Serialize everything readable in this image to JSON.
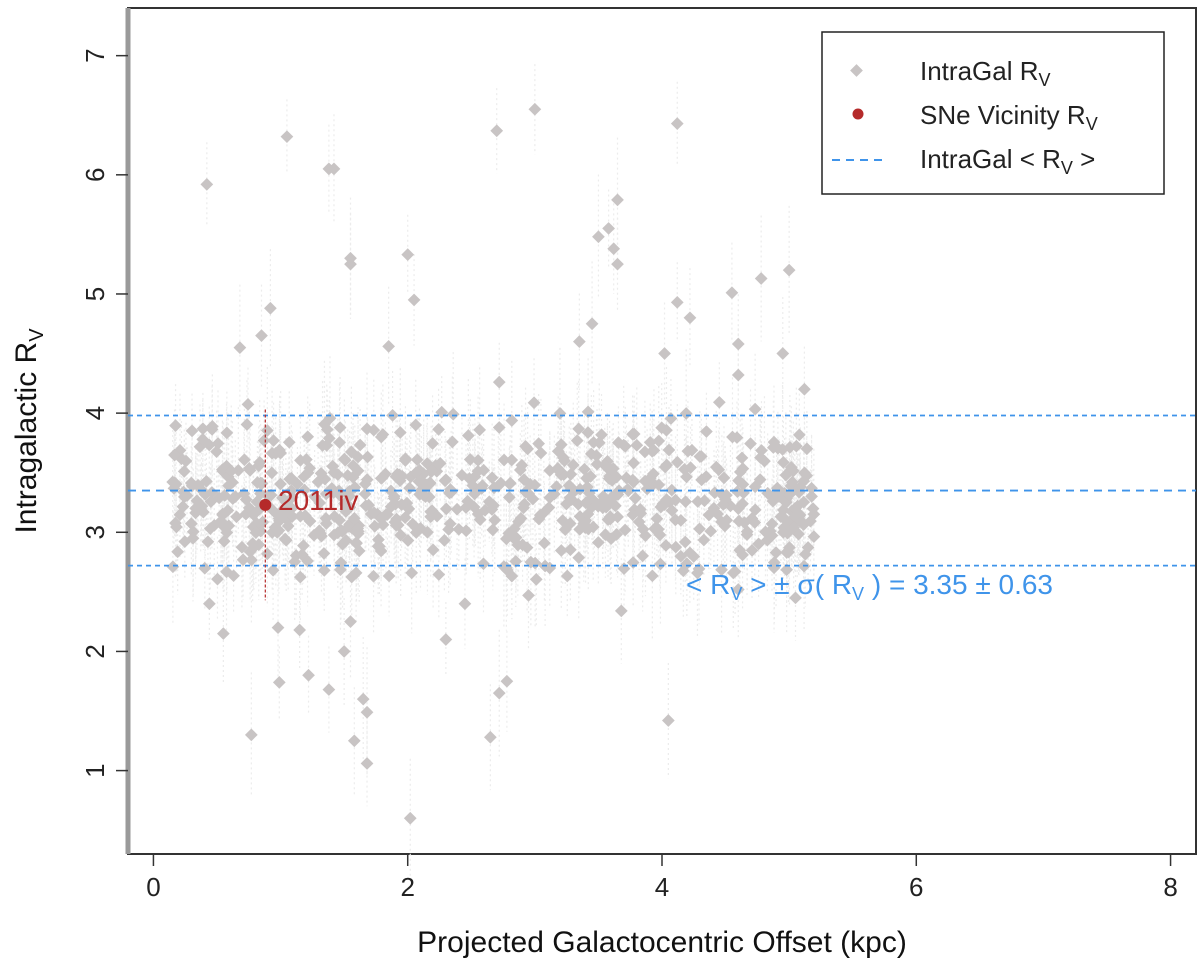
{
  "chart_data": {
    "type": "scatter",
    "xlabel": "Projected Galactocentric Offset (kpc)",
    "ylabel": "Intragalactic R",
    "ylabel_sub": "V",
    "xlim": [
      -0.2,
      8.2
    ],
    "ylim": [
      0.3,
      7.4
    ],
    "xticks": [
      "0",
      "2",
      "4",
      "6",
      "8"
    ],
    "yticks": [
      "1",
      "2",
      "3",
      "4",
      "5",
      "6",
      "7"
    ],
    "colors": {
      "intragal": "#c8c4c4",
      "sne": "#b52a2a",
      "mean": "#3f94ea",
      "axis": "#333333"
    },
    "legend": {
      "position": "top-right",
      "entries": [
        {
          "label": "IntraGal R",
          "sub": "V",
          "suffix": ""
        },
        {
          "label": "SNe Vicinity R",
          "sub": "V",
          "suffix": ""
        },
        {
          "label": "IntraGal < R",
          "sub": "V",
          "suffix": " >"
        }
      ]
    },
    "mean_rv": 3.35,
    "sigma_rv": 0.63,
    "mean_label": {
      "prefix": "< R",
      "sub1": "V",
      "mid": " > ± σ( R",
      "sub2": "V",
      "suffix": " ) =  3.35 ± 0.63"
    },
    "sne": {
      "name": "2011iv",
      "x": 0.88,
      "y": 3.23,
      "err": 0.8
    },
    "outliers": [
      [
        0.42,
        5.92
      ],
      [
        1.05,
        6.32
      ],
      [
        1.38,
        6.05
      ],
      [
        1.42,
        6.05
      ],
      [
        2.7,
        6.37
      ],
      [
        3.0,
        6.55
      ],
      [
        4.12,
        6.43
      ],
      [
        1.55,
        5.3
      ],
      [
        1.55,
        5.25
      ],
      [
        2.0,
        5.33
      ],
      [
        2.05,
        4.95
      ],
      [
        3.5,
        5.48
      ],
      [
        3.58,
        5.55
      ],
      [
        3.65,
        5.79
      ],
      [
        3.62,
        5.38
      ],
      [
        3.65,
        5.25
      ],
      [
        4.12,
        4.93
      ],
      [
        4.22,
        4.8
      ],
      [
        4.55,
        5.01
      ],
      [
        4.78,
        5.13
      ],
      [
        5.0,
        5.2
      ],
      [
        0.92,
        4.88
      ],
      [
        0.68,
        4.55
      ],
      [
        0.85,
        4.65
      ],
      [
        1.85,
        4.56
      ],
      [
        2.72,
        4.26
      ],
      [
        3.35,
        4.6
      ],
      [
        3.45,
        4.75
      ],
      [
        4.6,
        4.58
      ],
      [
        4.95,
        4.5
      ],
      [
        4.02,
        4.5
      ],
      [
        4.6,
        4.32
      ],
      [
        5.12,
        4.2
      ],
      [
        0.44,
        2.4
      ],
      [
        0.55,
        2.15
      ],
      [
        0.98,
        2.2
      ],
      [
        1.15,
        2.18
      ],
      [
        1.5,
        2.0
      ],
      [
        1.55,
        2.25
      ],
      [
        2.3,
        2.1
      ],
      [
        2.45,
        2.4
      ],
      [
        2.95,
        2.47
      ],
      [
        3.68,
        2.34
      ],
      [
        4.6,
        2.52
      ],
      [
        5.05,
        2.45
      ],
      [
        0.99,
        1.74
      ],
      [
        1.22,
        1.8
      ],
      [
        1.38,
        1.68
      ],
      [
        1.65,
        1.6
      ],
      [
        1.68,
        1.49
      ],
      [
        1.58,
        1.25
      ],
      [
        1.68,
        1.06
      ],
      [
        0.77,
        1.3
      ],
      [
        2.65,
        1.28
      ],
      [
        2.72,
        1.65
      ],
      [
        2.78,
        1.75
      ],
      [
        4.05,
        1.42
      ],
      [
        2.02,
        0.6
      ]
    ]
  }
}
